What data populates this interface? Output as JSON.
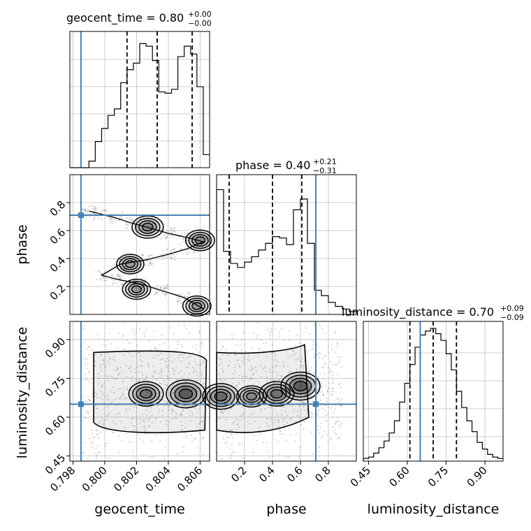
{
  "chart_data": {
    "type": "corner",
    "parameters": [
      "geocent_time",
      "phase",
      "luminosity_distance"
    ],
    "truths": {
      "geocent_time": 0.7985,
      "phase": 0.71,
      "luminosity_distance": 0.65
    },
    "colors": {
      "truth": "#4682b4",
      "hist": "#000000",
      "grid": "#bfbfbf",
      "scatter": "#9a9a9a"
    },
    "grid": true,
    "titles": {
      "geocent_time": {
        "label": "geocent_time = 0.80",
        "plus": "+0.00",
        "minus": "−0.00"
      },
      "phase": {
        "label": "phase = 0.40",
        "plus": "+0.21",
        "minus": "−0.31"
      },
      "luminosity_distance": {
        "label": "luminosity_distance = 0.70",
        "plus": "+0.09",
        "minus": "−0.09"
      }
    },
    "axis_labels": {
      "x_geocent": "geocent_time",
      "x_phase": "phase",
      "x_lumdist": "luminosity_distance",
      "y_phase": "phase",
      "y_lumdist": "luminosity_distance"
    },
    "ranges": {
      "geocent_time": [
        0.7978,
        0.8066
      ],
      "phase": [
        0.0,
        1.0
      ],
      "luminosity_distance": [
        0.43,
        0.97
      ]
    },
    "ticks": {
      "geocent_time": [
        "0.798",
        "0.800",
        "0.802",
        "0.804",
        "0.806"
      ],
      "phase_x": [
        "0.2",
        "0.4",
        "0.6",
        "0.8"
      ],
      "phase_y": [
        "0.2",
        "0.4",
        "0.6",
        "0.8"
      ],
      "lumdist_y": [
        "0.45",
        "0.60",
        "0.75",
        "0.90"
      ],
      "lumdist_x": [
        "0.45",
        "0.60",
        "0.75",
        "0.90"
      ]
    },
    "hist_geocent_time": {
      "edges": [
        0.7978,
        0.7982,
        0.7986,
        0.799,
        0.7994,
        0.7998,
        0.8002,
        0.8006,
        0.801,
        0.8014,
        0.8018,
        0.8022,
        0.8026,
        0.803,
        0.8034,
        0.8038,
        0.8042,
        0.8046,
        0.805,
        0.8054,
        0.8058,
        0.8062,
        0.8066
      ],
      "counts": [
        0,
        0,
        0,
        0.05,
        0.2,
        0.3,
        0.4,
        0.45,
        0.65,
        0.75,
        0.8,
        0.95,
        0.93,
        0.82,
        0.58,
        0.57,
        0.6,
        0.85,
        0.93,
        0.87,
        0.62,
        0.1
      ],
      "quantiles": [
        0.8014,
        0.8033,
        0.8055
      ]
    },
    "hist_phase": {
      "edges": [
        0.0,
        0.05,
        0.1,
        0.15,
        0.2,
        0.25,
        0.3,
        0.35,
        0.4,
        0.45,
        0.5,
        0.55,
        0.6,
        0.65,
        0.7,
        0.75,
        0.8,
        0.85,
        0.9,
        0.95,
        1.0
      ],
      "counts": [
        0.93,
        0.47,
        0.38,
        0.35,
        0.39,
        0.43,
        0.48,
        0.53,
        0.58,
        0.57,
        0.52,
        0.78,
        0.86,
        0.53,
        0.18,
        0.14,
        0.09,
        0.06,
        0.04,
        0.02
      ],
      "quantiles": [
        0.09,
        0.4,
        0.61
      ]
    },
    "hist_luminosity_distance": {
      "edges": [
        0.43,
        0.45,
        0.47,
        0.49,
        0.51,
        0.53,
        0.55,
        0.57,
        0.59,
        0.61,
        0.63,
        0.65,
        0.67,
        0.69,
        0.71,
        0.73,
        0.75,
        0.77,
        0.79,
        0.81,
        0.83,
        0.85,
        0.87,
        0.89,
        0.91,
        0.93,
        0.95,
        0.97
      ],
      "counts": [
        0.02,
        0.03,
        0.06,
        0.1,
        0.15,
        0.21,
        0.3,
        0.44,
        0.58,
        0.72,
        0.85,
        0.94,
        0.97,
        0.99,
        0.95,
        0.9,
        0.8,
        0.68,
        0.52,
        0.4,
        0.3,
        0.22,
        0.14,
        0.09,
        0.05,
        0.03,
        0.02
      ],
      "quantiles": [
        0.61,
        0.7,
        0.79
      ]
    },
    "density_geocent_phase": {
      "ridge": [
        [
          0.799,
          0.74
        ],
        [
          0.7997,
          0.72
        ],
        [
          0.8007,
          0.69
        ],
        [
          0.8018,
          0.65
        ],
        [
          0.8028,
          0.62
        ],
        [
          0.804,
          0.58
        ],
        [
          0.8052,
          0.55
        ],
        [
          0.8062,
          0.52
        ],
        [
          0.8052,
          0.47
        ],
        [
          0.804,
          0.43
        ],
        [
          0.8026,
          0.39
        ],
        [
          0.801,
          0.36
        ],
        [
          0.7998,
          0.28
        ],
        [
          0.8008,
          0.25
        ],
        [
          0.8022,
          0.22
        ],
        [
          0.8036,
          0.17
        ],
        [
          0.805,
          0.12
        ],
        [
          0.8062,
          0.04
        ]
      ],
      "blobs": [
        [
          0.8027,
          0.625,
          1.0
        ],
        [
          0.806,
          0.53,
          0.7
        ],
        [
          0.802,
          0.18,
          0.6
        ],
        [
          0.8058,
          0.06,
          0.6
        ],
        [
          0.8016,
          0.36,
          0.5
        ]
      ]
    },
    "density_geocent_lumdist": {
      "blobs": [
        [
          0.8026,
          0.69,
          0.7
        ],
        [
          0.8051,
          0.69,
          1.0
        ]
      ]
    },
    "density_phase_lumdist": {
      "blobs": [
        [
          0.03,
          0.68,
          0.8
        ],
        [
          0.43,
          0.69,
          0.7
        ],
        [
          0.6,
          0.72,
          1.0
        ],
        [
          0.25,
          0.68,
          0.4
        ]
      ]
    }
  }
}
